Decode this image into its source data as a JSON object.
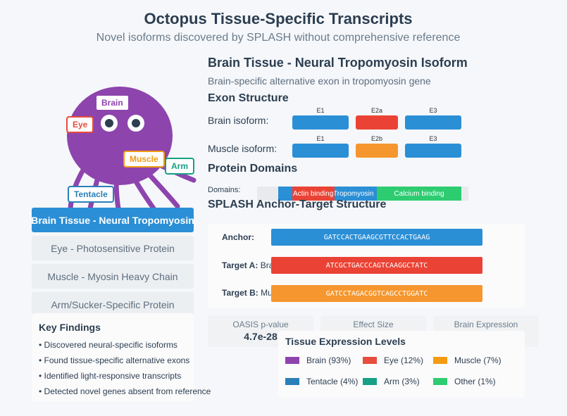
{
  "header": {
    "title": "Octopus Tissue-Specific Transcripts",
    "subtitle": "Novel isoforms discovered by SPLASH without comprehensive reference"
  },
  "octopus": {
    "labels": {
      "brain": "Brain",
      "eye": "Eye",
      "muscle": "Muscle",
      "arm": "Arm",
      "tentacle": "Tentacle"
    },
    "colors": {
      "body": "#8e44ad",
      "brain": "#8e44ad",
      "eye": "#e74c3c",
      "muscle": "#f39c12",
      "arm": "#16a085",
      "tentacle": "#2980b9"
    }
  },
  "tabs": [
    {
      "label": "Brain Tissue - Neural Tropomyosin",
      "active": true
    },
    {
      "label": "Eye - Photosensitive Protein",
      "active": false
    },
    {
      "label": "Muscle - Myosin Heavy Chain",
      "active": false
    },
    {
      "label": "Arm/Sucker-Specific Protein",
      "active": false
    }
  ],
  "findings": {
    "title": "Key Findings",
    "items": [
      "• Discovered neural-specific isoforms",
      "• Found tissue-specific alternative exons",
      "• Identified light-responsive transcripts",
      "• Detected novel genes absent from reference"
    ]
  },
  "detail": {
    "title": "Brain Tissue - Neural Tropomyosin Isoform",
    "subtitle": "Brain-specific alternative exon in tropomyosin gene",
    "exon_heading": "Exon Structure",
    "brain_isoform_label": "Brain isoform:",
    "muscle_isoform_label": "Muscle isoform:",
    "brain_exons": [
      "E1",
      "E2a",
      "E3"
    ],
    "muscle_exons": [
      "E1",
      "E2b",
      "E3"
    ],
    "domain_heading": "Protein Domains",
    "domains_label": "Domains:",
    "domains": [
      "Actin binding",
      "Tropomyosin",
      "Calcium binding"
    ],
    "splash_heading": "SPLASH Anchor-Target Structure",
    "anchor_label": "Anchor:",
    "anchor_seq": "GATCCACTGAAGCGTTCCACTGAAG",
    "target_a_label": "Target A:",
    "target_a_tissue": "Brain",
    "target_a_seq": "ATCGCTGACCCAGTCAAGGCTATC",
    "target_b_label": "Target B:",
    "target_b_tissue": "Muscle",
    "target_b_seq": "GATCCTAGACGGTCAGCCTGGATC"
  },
  "stats": [
    {
      "label": "OASIS p-value",
      "value": "4.7e-28"
    },
    {
      "label": "Effect Size",
      "value": ""
    },
    {
      "label": "Brain Expression",
      "value": ""
    }
  ],
  "expression": {
    "title": "Tissue Expression Levels",
    "legend": [
      {
        "label": "Brain (93%)",
        "color": "#8e44ad"
      },
      {
        "label": "Eye (12%)",
        "color": "#e74c3c"
      },
      {
        "label": "Muscle (7%)",
        "color": "#f39c12"
      },
      {
        "label": "Tentacle (4%)",
        "color": "#2980b9"
      },
      {
        "label": "Arm (3%)",
        "color": "#16a085"
      },
      {
        "label": "Other (1%)",
        "color": "#2ecc71"
      }
    ]
  },
  "colors": {
    "blue": "#2b8fd6",
    "red": "#ea4335",
    "orange": "#f6962e",
    "green": "#2ecc71"
  }
}
